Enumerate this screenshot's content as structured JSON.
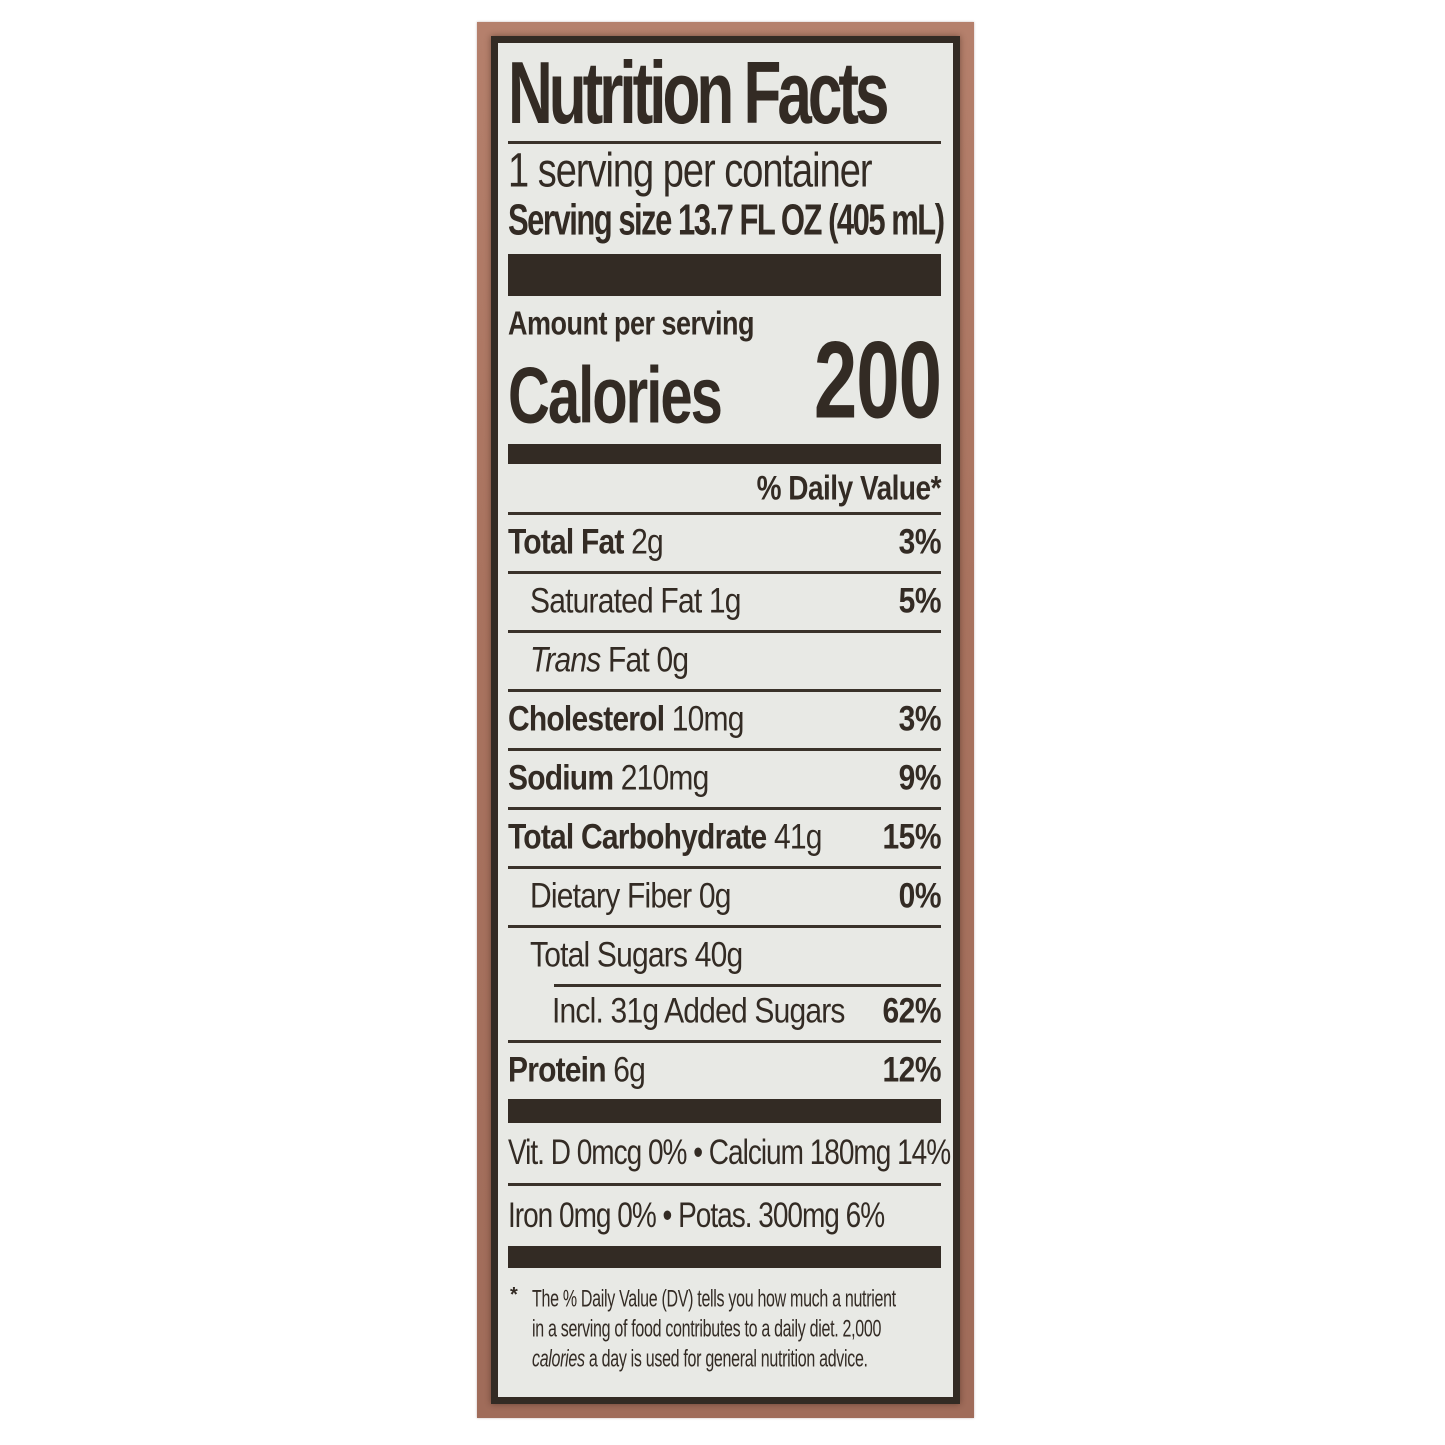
{
  "label": {
    "title": "Nutrition Facts",
    "servings_per_container": "1 serving per container",
    "serving_size_label": "Serving size",
    "serving_size_value": "13.7 FL OZ (405 mL)",
    "amount_per_serving": "Amount per serving",
    "calories_label": "Calories",
    "calories_value": "200",
    "daily_value_header": "% Daily Value*",
    "rows": [
      {
        "name": "Total Fat",
        "amount": "2g",
        "pct": "3%"
      },
      {
        "name": "Saturated Fat",
        "amount": "1g",
        "pct": "5%"
      },
      {
        "name_italic": "Trans",
        "name": "Fat",
        "amount": "0g",
        "pct": ""
      },
      {
        "name": "Cholesterol",
        "amount": "10mg",
        "pct": "3%"
      },
      {
        "name": "Sodium",
        "amount": "210mg",
        "pct": "9%"
      },
      {
        "name": "Total Carbohydrate",
        "amount": "41g",
        "pct": "15%"
      },
      {
        "name": "Dietary Fiber",
        "amount": "0g",
        "pct": "0%"
      },
      {
        "name": "Total Sugars",
        "amount": "40g",
        "pct": ""
      },
      {
        "name": "Incl. 31g Added Sugars",
        "amount": "",
        "pct": "62%"
      },
      {
        "name": "Protein",
        "amount": "6g",
        "pct": "12%"
      }
    ],
    "micros": [
      {
        "text": "Vit. D 0mcg 0% • Calcium 180mg 14%"
      },
      {
        "text": "Iron 0mg 0% • Potas. 300mg 6%"
      }
    ],
    "footnote": {
      "marker": "*",
      "line1": "The % Daily Value (DV) tells you how much a nutrient",
      "line2": "in a serving of food contributes to a daily diet. 2,000",
      "line3_italic": "calories",
      "line3_rest": " a day is used for general nutrition advice."
    },
    "colors": {
      "text": "#332b24",
      "label_background": "#e8e9e5",
      "carton_brown": "#a9735f",
      "page_background": "#ffffff"
    }
  }
}
